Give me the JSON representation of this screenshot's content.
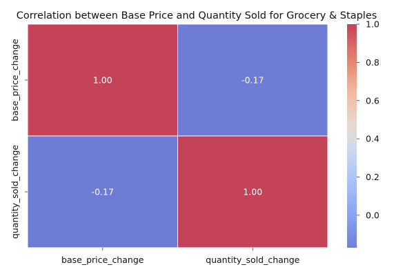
{
  "chart_data": {
    "type": "heatmap",
    "title": "Correlation between Base Price and Quantity Sold for Grocery & Staples",
    "x_categories": [
      "base_price_change",
      "quantity_sold_change"
    ],
    "y_categories": [
      "base_price_change",
      "quantity_sold_change"
    ],
    "values": [
      [
        1.0,
        -0.17
      ],
      [
        -0.17,
        1.0
      ]
    ],
    "value_format": "2 decimals",
    "colorscale": "coolwarm",
    "color_range": [
      -0.17,
      1.0
    ],
    "colorbar_ticks": [
      "0.0",
      "0.2",
      "0.4",
      "0.6",
      "0.8",
      "1.0"
    ],
    "cell_colors": {
      "high": "#c44359",
      "low": "#6e7cd5"
    },
    "annotation_color": "#ffffff",
    "grid_lines": "white"
  }
}
